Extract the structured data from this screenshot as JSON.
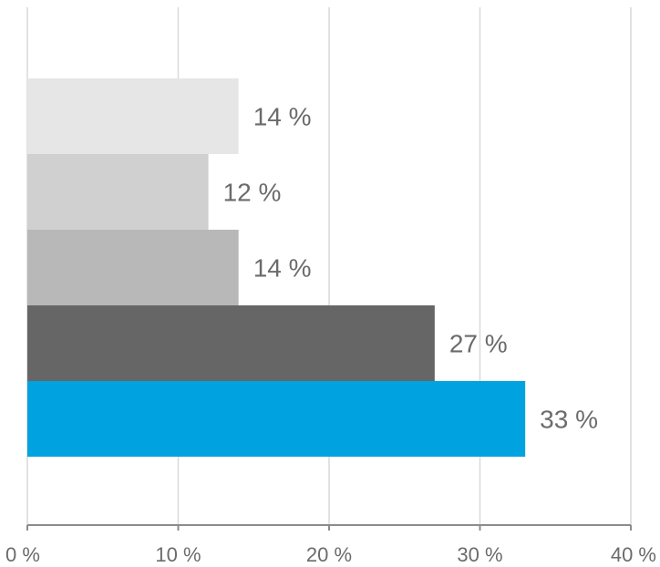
{
  "chart_data": {
    "type": "bar",
    "orientation": "horizontal",
    "categories": [
      "",
      "",
      "",
      "",
      ""
    ],
    "values": [
      14,
      12,
      14,
      27,
      33
    ],
    "data_labels": [
      "14 %",
      "12 %",
      "14 %",
      "27 %",
      "33 %"
    ],
    "colors": [
      "#e6e6e6",
      "#d0d0d0",
      "#b8b8b8",
      "#666666",
      "#00a3e0"
    ],
    "xlim": [
      0,
      40
    ],
    "x_ticks": [
      0,
      10,
      20,
      30,
      40
    ],
    "x_tick_labels": [
      "0 %",
      "10 %",
      "20 %",
      "30 %",
      "40 %"
    ],
    "title": "",
    "xlabel": "",
    "ylabel": "",
    "grid": "vertical",
    "legend": "none"
  }
}
